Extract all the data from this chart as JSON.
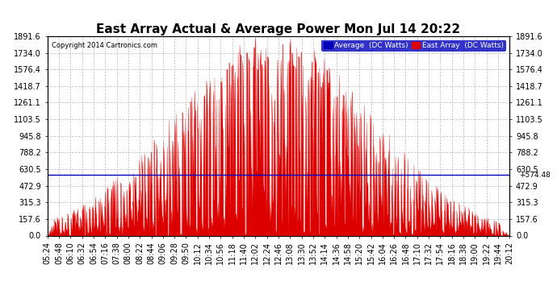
{
  "title": "East Array Actual & Average Power Mon Jul 14 20:22",
  "copyright": "Copyright 2014 Cartronics.com",
  "legend_avg": "Average  (DC Watts)",
  "legend_east": "East Array  (DC Watts)",
  "legend_avg_color": "#0000bb",
  "legend_east_color": "#dd0000",
  "avg_line_value": 574.48,
  "avg_line_label": "+574.48",
  "ymax": 1891.6,
  "ymin": 0.0,
  "yticks": [
    0.0,
    157.6,
    315.3,
    472.9,
    630.5,
    788.2,
    945.8,
    1103.5,
    1261.1,
    1418.7,
    1576.4,
    1734.0,
    1891.6
  ],
  "background_color": "#ffffff",
  "grid_color": "#bbbbbb",
  "bar_color": "#dd0000",
  "line_color": "#0000bb",
  "title_fontsize": 11,
  "axis_fontsize": 7,
  "x_tick_rotation": 90,
  "xtick_labels": [
    "05:24",
    "05:48",
    "06:10",
    "06:32",
    "06:54",
    "07:16",
    "07:38",
    "08:00",
    "08:22",
    "08:44",
    "09:06",
    "09:28",
    "09:50",
    "10:12",
    "10:34",
    "10:56",
    "11:18",
    "11:40",
    "12:02",
    "12:24",
    "12:46",
    "13:08",
    "13:30",
    "13:52",
    "14:14",
    "14:36",
    "14:58",
    "15:20",
    "15:42",
    "16:04",
    "16:26",
    "16:48",
    "17:10",
    "17:32",
    "17:54",
    "18:16",
    "18:38",
    "19:00",
    "19:22",
    "19:44",
    "20:12"
  ]
}
